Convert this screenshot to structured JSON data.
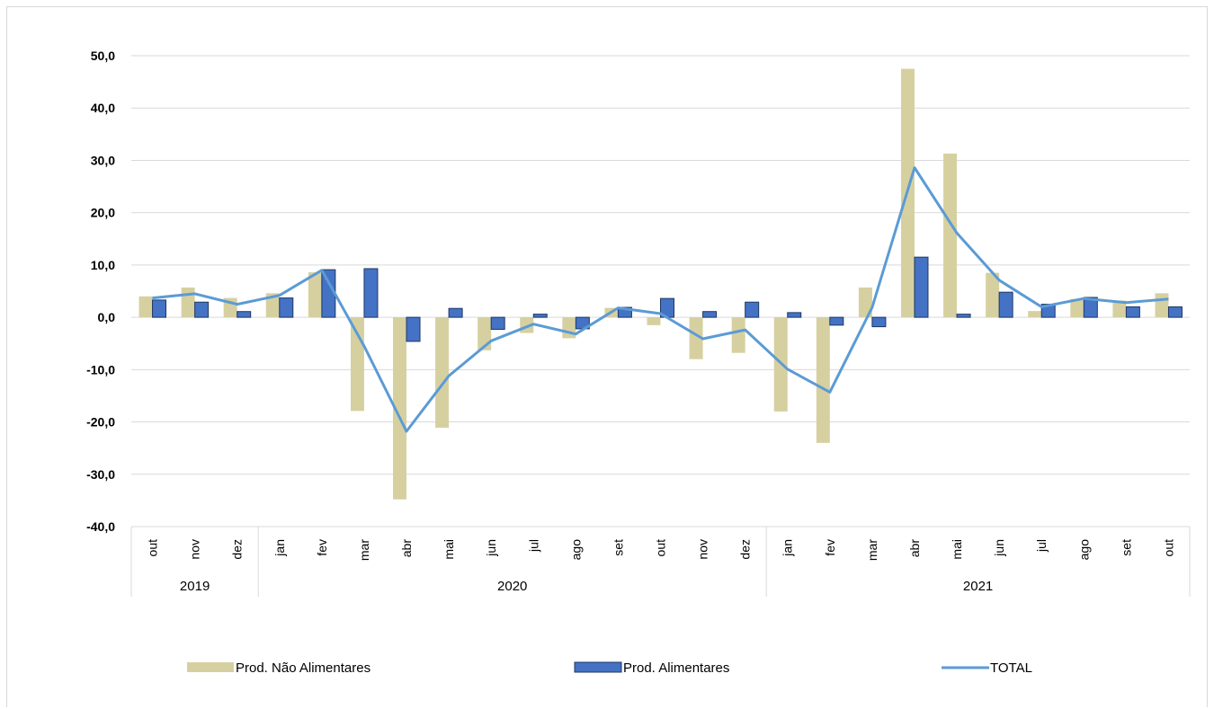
{
  "colors": {
    "nao_alimentares": "#d6d0a1",
    "alimentares": "#4472c4",
    "alimentares_border": "#1f3864",
    "total": "#5b9bd5",
    "grid": "#d9d9d9"
  },
  "chart_data": {
    "type": "bar",
    "categories": [
      "out",
      "nov",
      "dez",
      "jan",
      "fev",
      "mar",
      "abr",
      "mai",
      "jun",
      "jul",
      "ago",
      "set",
      "out",
      "nov",
      "dez",
      "jan",
      "fev",
      "mar",
      "abr",
      "mai",
      "jun",
      "jul",
      "ago",
      "set",
      "out"
    ],
    "groups": [
      {
        "label": "2019",
        "count": 3
      },
      {
        "label": "2020",
        "count": 12
      },
      {
        "label": "2021",
        "count": 10
      }
    ],
    "series": [
      {
        "name": "Prod. Não Alimentares",
        "type": "bar",
        "values": [
          4.0,
          5.7,
          3.7,
          4.6,
          8.6,
          -17.9,
          -34.8,
          -21.1,
          -6.3,
          -3.0,
          -4.0,
          1.8,
          -1.5,
          -8.0,
          -6.8,
          -18.0,
          -24.0,
          5.7,
          47.5,
          31.3,
          8.5,
          1.2,
          3.5,
          3.2,
          4.6
        ]
      },
      {
        "name": "Prod. Alimentares",
        "type": "bar",
        "values": [
          3.3,
          2.9,
          1.1,
          3.7,
          9.1,
          9.3,
          -4.6,
          1.7,
          -2.3,
          0.6,
          -2.2,
          1.9,
          3.6,
          1.1,
          2.9,
          0.9,
          -1.5,
          -1.8,
          11.5,
          0.6,
          4.8,
          2.5,
          3.8,
          2.0,
          2.0
        ]
      },
      {
        "name": "TOTAL",
        "type": "line",
        "values": [
          3.7,
          4.5,
          2.5,
          4.2,
          9.0,
          -5.5,
          -21.8,
          -11.2,
          -4.5,
          -1.3,
          -3.2,
          1.8,
          0.7,
          -4.1,
          -2.4,
          -9.9,
          -14.3,
          1.9,
          28.6,
          16.1,
          7.1,
          2.0,
          3.6,
          2.8,
          3.5
        ]
      }
    ],
    "ylim": [
      -40,
      50
    ],
    "yticks": [
      "50,0",
      "40,0",
      "30,0",
      "20,0",
      "10,0",
      "0,0",
      "-10,0",
      "-20,0",
      "-30,0",
      "-40,0"
    ],
    "ytick_values": [
      50,
      40,
      30,
      20,
      10,
      0,
      -10,
      -20,
      -30,
      -40
    ],
    "grid": true,
    "legend_position": "bottom",
    "legend": [
      "Prod. Não Alimentares",
      "Prod. Alimentares",
      "TOTAL"
    ]
  }
}
